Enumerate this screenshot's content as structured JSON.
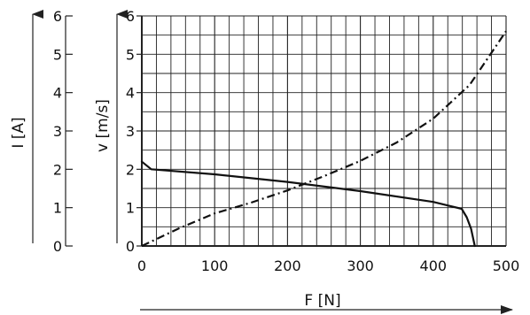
{
  "chart_data": {
    "type": "line",
    "x_axis": {
      "label": "F [N]",
      "range": [
        0,
        500
      ],
      "ticks": [
        "0",
        "100",
        "200",
        "300",
        "400",
        "500"
      ]
    },
    "y_axis_current": {
      "label": "I [A]",
      "range": [
        0,
        6
      ],
      "ticks": [
        "0",
        "1",
        "2",
        "3",
        "4",
        "5",
        "6"
      ]
    },
    "y_axis_velocity": {
      "label": "v [m/s]",
      "range": [
        0,
        6
      ],
      "ticks": [
        "0",
        "1",
        "2",
        "3",
        "4",
        "5",
        "6"
      ]
    },
    "grid": true,
    "series": [
      {
        "line_style": "solid",
        "axis": "y_axis_velocity",
        "points": [
          [
            0,
            2.2
          ],
          [
            13,
            2.0
          ],
          [
            100,
            1.87
          ],
          [
            200,
            1.67
          ],
          [
            300,
            1.43
          ],
          [
            400,
            1.15
          ],
          [
            439,
            0.97
          ],
          [
            446,
            0.75
          ],
          [
            452,
            0.45
          ],
          [
            457,
            0
          ]
        ]
      },
      {
        "line_style": "dash-dot",
        "axis": "y_axis_current",
        "points": [
          [
            0,
            0
          ],
          [
            50,
            0.45
          ],
          [
            100,
            0.85
          ],
          [
            150,
            1.13
          ],
          [
            200,
            1.45
          ],
          [
            250,
            1.82
          ],
          [
            300,
            2.22
          ],
          [
            350,
            2.7
          ],
          [
            400,
            3.32
          ],
          [
            450,
            4.2
          ],
          [
            500,
            5.6
          ]
        ]
      }
    ]
  }
}
